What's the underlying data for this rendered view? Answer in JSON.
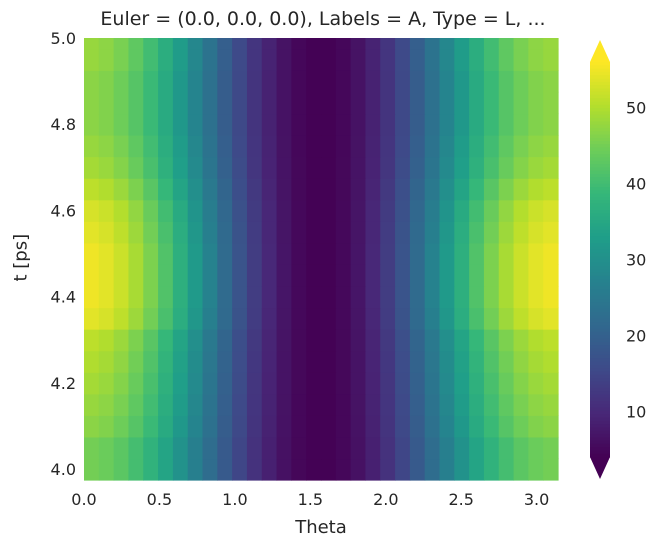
{
  "chart_data": {
    "type": "heatmap",
    "title": "Euler = (0.0, 0.0, 0.0), Labels = A, Type = L, ...",
    "xlabel": "Theta",
    "ylabel": "t [ps]",
    "xlim": [
      0.0,
      3.1416
    ],
    "ylim": [
      3.975,
      5.0
    ],
    "x_ticks": [
      "0.0",
      "0.5",
      "1.0",
      "1.5",
      "2.0",
      "2.5",
      "3.0"
    ],
    "x_tick_values": [
      0.0,
      0.5,
      1.0,
      1.5,
      2.0,
      2.5,
      3.0
    ],
    "y_ticks": [
      "4.0",
      "4.2",
      "4.4",
      "4.6",
      "4.8",
      "5.0"
    ],
    "y_tick_values": [
      4.0,
      4.2,
      4.4,
      4.6,
      4.8,
      5.0
    ],
    "t_rows": [
      4.0,
      4.05,
      4.1,
      4.15,
      4.2,
      4.25,
      4.3,
      4.35,
      4.4,
      4.45,
      4.5,
      4.55,
      4.6,
      4.65,
      4.7,
      4.75,
      4.8,
      4.85,
      4.9,
      4.95,
      5.0
    ],
    "theta_columns": 32,
    "row_peak_values": [
      45,
      45,
      47,
      48,
      49,
      50,
      51,
      54,
      55,
      55,
      55,
      54,
      53,
      51,
      49,
      48,
      47,
      47,
      47,
      48,
      48
    ],
    "min_value": 4,
    "colormap": "viridis",
    "colorbar": {
      "vmin": 4,
      "vmax": 56,
      "ticks": [
        10,
        20,
        30,
        40,
        50
      ],
      "tick_labels": [
        "10",
        "20",
        "30",
        "40",
        "50"
      ],
      "extend": "both"
    },
    "grid": false,
    "legend": "none"
  }
}
